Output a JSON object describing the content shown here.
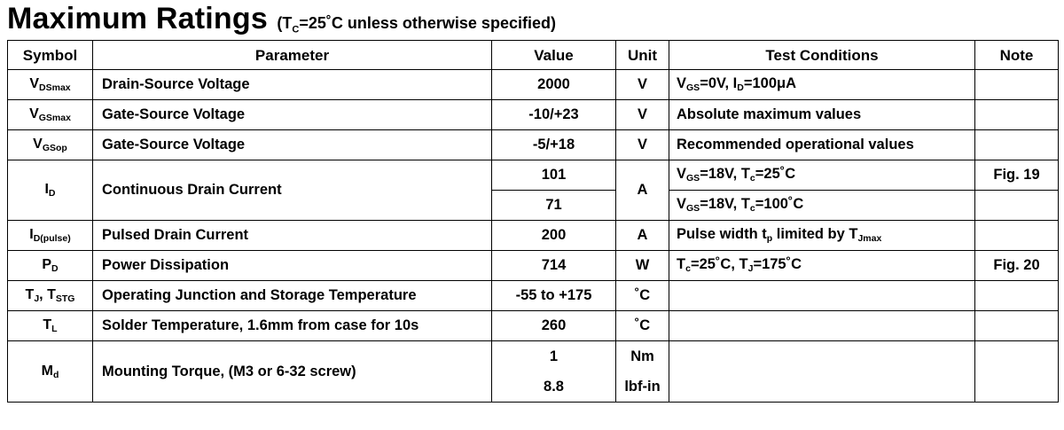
{
  "title": {
    "main": "Maximum Ratings",
    "sub_open": "(T",
    "sub_index": "C",
    "sub_rest": "=25˚C  unless otherwise specified)"
  },
  "headers": {
    "symbol": "Symbol",
    "parameter": "Parameter",
    "value": "Value",
    "unit": "Unit",
    "conditions": "Test Conditions",
    "note": "Note"
  },
  "rows": {
    "vds": {
      "sym": "V",
      "sym_sub": "DSmax",
      "parameter": "Drain-Source Voltage",
      "value": "2000",
      "unit": "V",
      "cond_parts": [
        "V",
        "GS",
        "=0V, I",
        "D",
        "=100μA"
      ],
      "note": ""
    },
    "vgsmax": {
      "sym": "V",
      "sym_sub": "GSmax",
      "parameter": "Gate-Source Voltage",
      "value": "-10/+23",
      "unit": "V",
      "cond": "Absolute maximum values",
      "note": ""
    },
    "vgsop": {
      "sym": "V",
      "sym_sub": "GSop",
      "parameter": "Gate-Source Voltage",
      "value": "-5/+18",
      "unit": "V",
      "cond": "Recommended operational values",
      "note": ""
    },
    "id": {
      "sym": "I",
      "sym_sub": "D",
      "parameter": "Continuous Drain Current",
      "value1": "101",
      "value2": "71",
      "unit": "A",
      "cond1_parts": [
        "V",
        "GS",
        "=18V, T",
        "c",
        "=25˚C"
      ],
      "cond2_parts": [
        "V",
        "GS",
        "=18V, T",
        "c",
        "=100˚C"
      ],
      "note1": "Fig. 19",
      "note2": ""
    },
    "idpulse": {
      "sym": "I",
      "sym_sub": "D(pulse)",
      "parameter": "Pulsed Drain Current",
      "value": "200",
      "unit": "A",
      "cond_parts": [
        "Pulse width t",
        "p",
        " limited by T",
        "Jmax"
      ],
      "note": ""
    },
    "pd": {
      "sym": "P",
      "sym_sub": "D",
      "parameter": "Power Dissipation",
      "value": "714",
      "unit": "W",
      "cond_parts": [
        "T",
        "c",
        "=25˚C, T",
        "J",
        "=175˚C"
      ],
      "note": "Fig. 20"
    },
    "tj": {
      "sym_parts": [
        "T",
        "J",
        ", T",
        "STG"
      ],
      "parameter": "Operating Junction and Storage Temperature",
      "value": "-55 to +175",
      "unit": "˚C",
      "cond": "",
      "note": ""
    },
    "tl": {
      "sym": "T",
      "sym_sub": "L",
      "parameter": "Solder Temperature, 1.6mm from case for 10s",
      "value": "260",
      "unit": "˚C",
      "cond": "",
      "note": ""
    },
    "md": {
      "sym": "M",
      "sym_sub": "d",
      "parameter": "Mounting Torque, (M3 or 6-32 screw)",
      "value1": "1",
      "value2": "8.8",
      "unit1": "Nm",
      "unit2": "lbf-in",
      "cond": "",
      "note": ""
    }
  }
}
